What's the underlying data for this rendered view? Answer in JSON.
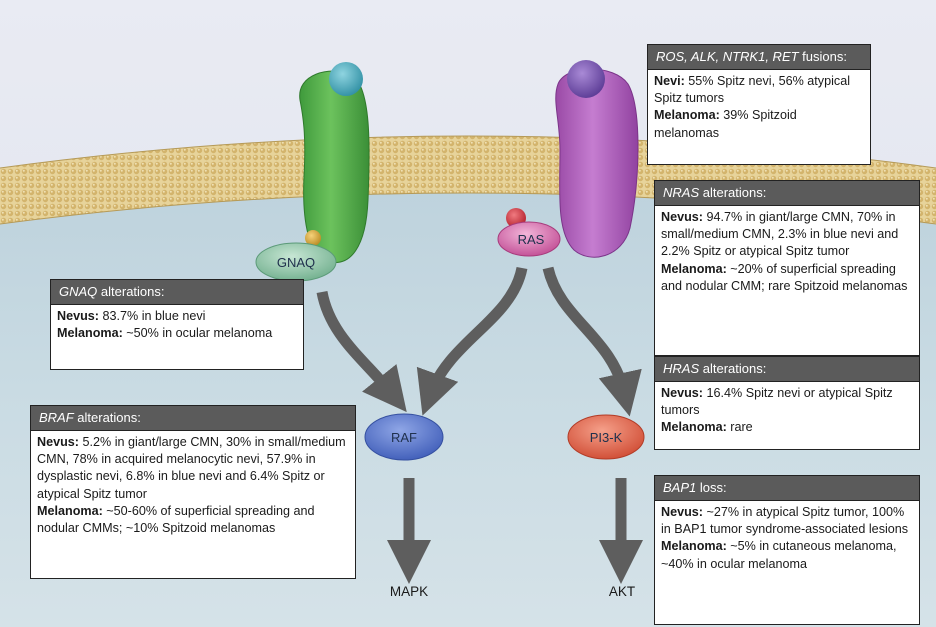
{
  "labels": {
    "gnaq": "GNAQ",
    "ras": "RAS",
    "raf": "RAF",
    "pi3k": "PI3-K",
    "mapk": "MAPK",
    "akt": "AKT"
  },
  "boxes": {
    "fusions": {
      "genes": "ROS, ALK, NTRK1, RET",
      "suffix": " fusions:",
      "rows": [
        {
          "key": "Nevi:",
          "text": " 55% Spitz nevi, 56% atypical Spitz tumors"
        },
        {
          "key": "Melanoma:",
          "text": " 39% Spitzoid melanomas"
        }
      ]
    },
    "nras": {
      "gene": "NRAS",
      "suffix": " alterations:",
      "rows": [
        {
          "key": "Nevus:",
          "text": " 94.7% in giant/large CMN, 70% in small/medium CMN, 2.3% in blue nevi and 2.2% Spitz or atypical Spitz tumor"
        },
        {
          "key": "Melanoma:",
          "text": " ~20% of superficial spreading and nodular CMM; rare Spitzoid melanomas"
        }
      ]
    },
    "hras": {
      "gene": "HRAS",
      "suffix": " alterations:",
      "rows": [
        {
          "key": "Nevus:",
          "text": " 16.4% Spitz nevi or atypical Spitz tumors"
        },
        {
          "key": "Melanoma:",
          "text": " rare"
        }
      ]
    },
    "bap1": {
      "gene": "BAP1",
      "suffix": " loss:",
      "rows": [
        {
          "key": "Nevus:",
          "text": " ~27% in atypical Spitz tumor, 100% in BAP1 tumor syndrome-associated lesions"
        },
        {
          "key": "Melanoma:",
          "text": " ~5% in cutaneous melanoma, ~40% in ocular melanoma"
        }
      ]
    },
    "gnaq": {
      "gene": "GNAQ",
      "suffix": " alterations:",
      "rows": [
        {
          "key": "Nevus:",
          "text": " 83.7% in blue nevi"
        },
        {
          "key": "Melanoma:",
          "text": " ~50% in ocular melanoma"
        }
      ]
    },
    "braf": {
      "gene": "BRAF",
      "suffix": " alterations:",
      "rows": [
        {
          "key": "Nevus:",
          "text": " 5.2% in giant/large CMN, 30% in small/medium CMN, 78% in acquired melanocytic nevi, 57.9% in dysplastic nevi, 6.8% in blue nevi and 6.4% Spitz or atypical Spitz tumor"
        },
        {
          "key": "Melanoma:",
          "text": " ~50-60% of superficial spreading and nodular CMMs; ~10% Spitzoid melanomas"
        }
      ]
    }
  }
}
